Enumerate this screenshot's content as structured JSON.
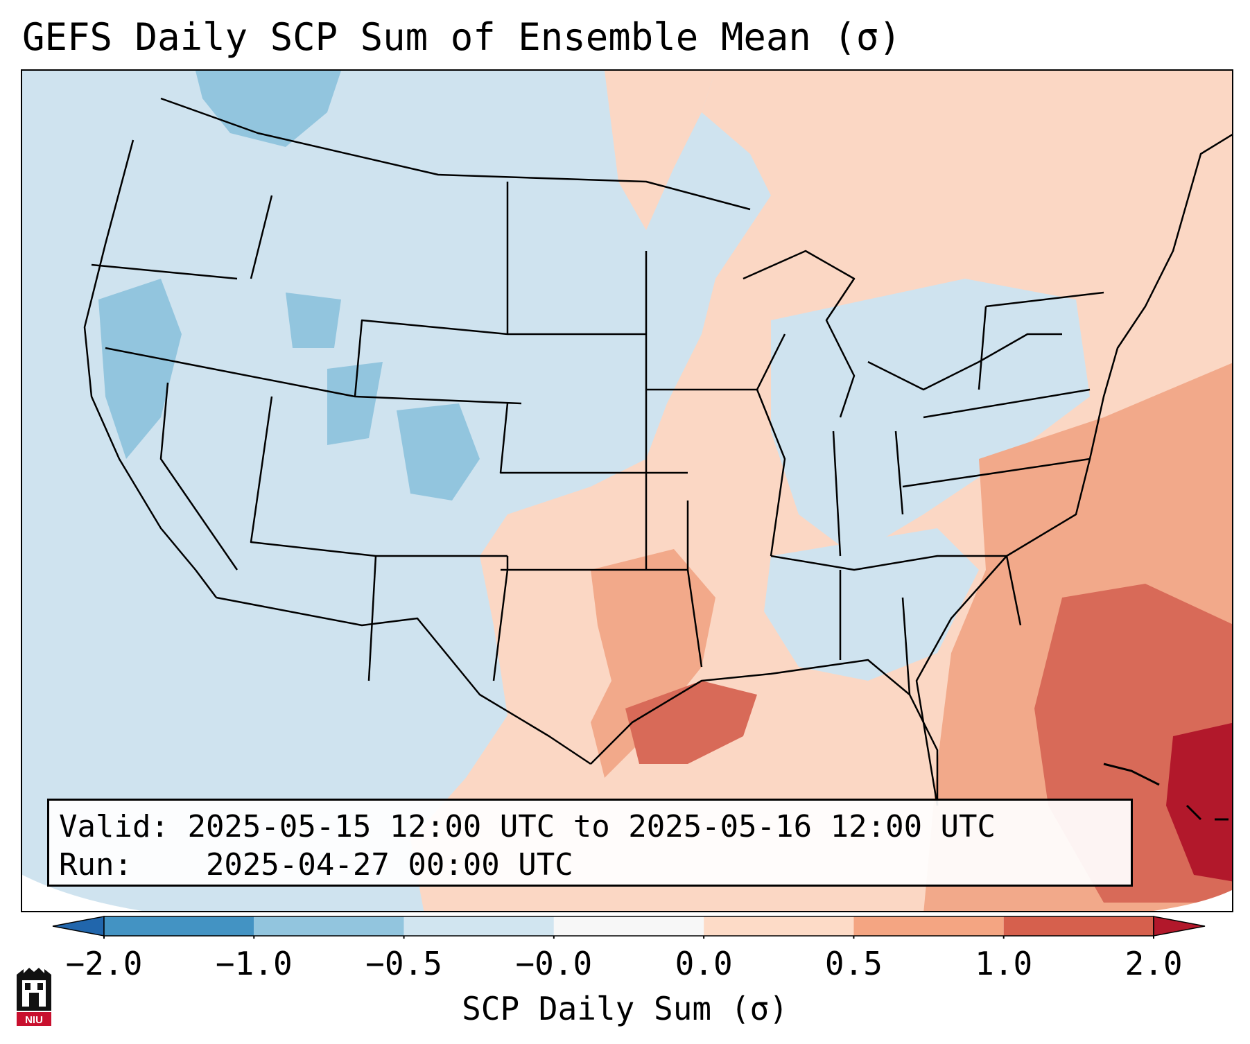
{
  "title": "GEFS Daily SCP Sum of Ensemble Mean (σ)",
  "map": {
    "type": "shaded anomaly map",
    "region": "Continental United States",
    "overlays": [
      "state-boundaries",
      "coastlines"
    ]
  },
  "info": {
    "valid_label": "Valid:",
    "valid_value": "2025-05-15 12:00 UTC to 2025-05-16 12:00 UTC",
    "run_label": "Run:",
    "run_value": "2025-04-27 00:00 UTC"
  },
  "colorbar": {
    "label": "SCP Daily Sum (σ)",
    "ticks": [
      "−2.0",
      "−1.0",
      "−0.5",
      "−0.0",
      "0.0",
      "0.5",
      "1.0",
      "2.0"
    ],
    "bins": [
      {
        "from": -2.0,
        "to": -1.0,
        "color": "#4393c3"
      },
      {
        "from": -1.0,
        "to": -0.5,
        "color": "#92c5de"
      },
      {
        "from": -0.5,
        "to": -0.0,
        "color": "#d1e5f0"
      },
      {
        "from": -0.0,
        "to": 0.0,
        "color": "#f7f7f7"
      },
      {
        "from": 0.0,
        "to": 0.5,
        "color": "#fddbc7"
      },
      {
        "from": 0.5,
        "to": 1.0,
        "color": "#f4a582"
      },
      {
        "from": 1.0,
        "to": 2.0,
        "color": "#d6604d"
      }
    ],
    "extend_low_color": "#2166ac",
    "extend_high_color": "#b2182b"
  },
  "logo": {
    "text": "NIU"
  }
}
